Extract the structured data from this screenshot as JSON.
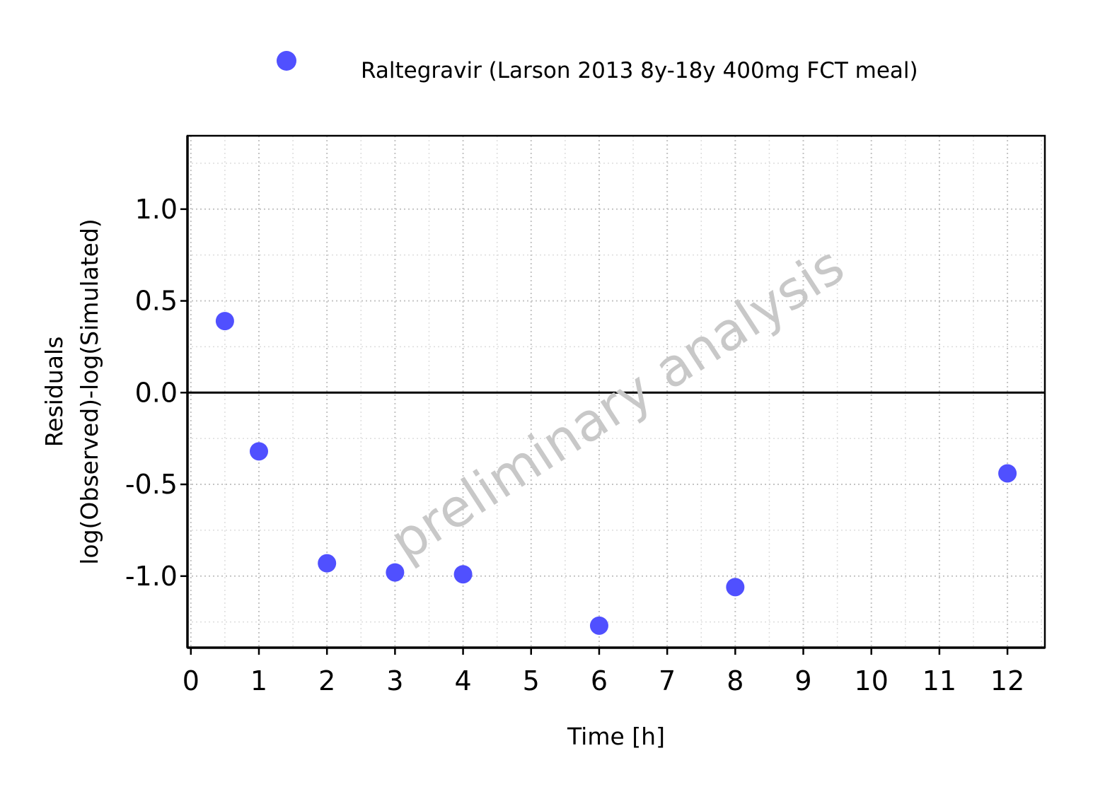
{
  "chart_data": {
    "type": "scatter",
    "xlabel": "Time [h]",
    "ylabel_line1": "Residuals",
    "ylabel_line2": "log(Observed)-log(Simulated)",
    "xlim": [
      -0.05,
      12.55
    ],
    "ylim": [
      -1.39,
      1.4
    ],
    "x_ticks": [
      0,
      1,
      2,
      3,
      4,
      5,
      6,
      7,
      8,
      9,
      10,
      11,
      12
    ],
    "y_ticks": [
      -1.0,
      -0.5,
      0.0,
      0.5,
      1.0
    ],
    "y_tick_labels": [
      "-1.0",
      "-0.5",
      "0.0",
      "0.5",
      "1.0"
    ],
    "x_minor_step": 0.5,
    "y_minor_step": 0.25,
    "grid": true,
    "reference_line_y": 0,
    "legend_position": "top",
    "watermark": "preliminary analysis",
    "series": [
      {
        "name": "Raltegravir (Larson 2013 8y-18y 400mg FCT meal)",
        "color": "#5050ff",
        "marker": "circle",
        "x": [
          0.5,
          1,
          2,
          3,
          4,
          6,
          8,
          12
        ],
        "y": [
          0.39,
          -0.32,
          -0.93,
          -0.98,
          -0.99,
          -1.27,
          -1.06,
          -0.44
        ]
      }
    ]
  }
}
